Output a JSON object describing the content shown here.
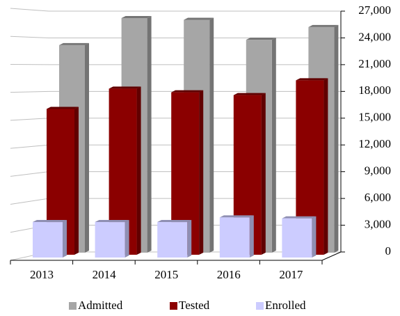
{
  "chart_data": {
    "type": "bar3d",
    "categories": [
      "2013",
      "2014",
      "2015",
      "2016",
      "2017"
    ],
    "series": [
      {
        "name": "Admitted",
        "color": "#a6a6a6",
        "values": [
          23000,
          26000,
          25800,
          23600,
          25000
        ]
      },
      {
        "name": "Tested",
        "color": "#8b0000",
        "values": [
          15800,
          18000,
          17600,
          17300,
          18900
        ]
      },
      {
        "name": "Enrolled",
        "color": "#ccccff",
        "values": [
          3800,
          3800,
          3800,
          4300,
          4200
        ]
      }
    ],
    "ylim": [
      0,
      27000
    ],
    "yticks": [
      0,
      {
        "value": 3000,
        "label": "3,000"
      },
      {
        "value": 6000,
        "label": "6,000"
      },
      {
        "value": 9000,
        "label": "9,000"
      },
      {
        "value": 12000,
        "label": "12,000"
      },
      {
        "value": 15000,
        "label": "15,000"
      },
      {
        "value": 18000,
        "label": "18,000"
      },
      {
        "value": 21000,
        "label": "21,000"
      },
      {
        "value": 24000,
        "label": "24,000"
      },
      {
        "value": 27000,
        "label": "27,000"
      }
    ],
    "grid": true,
    "legend": "bottom"
  }
}
